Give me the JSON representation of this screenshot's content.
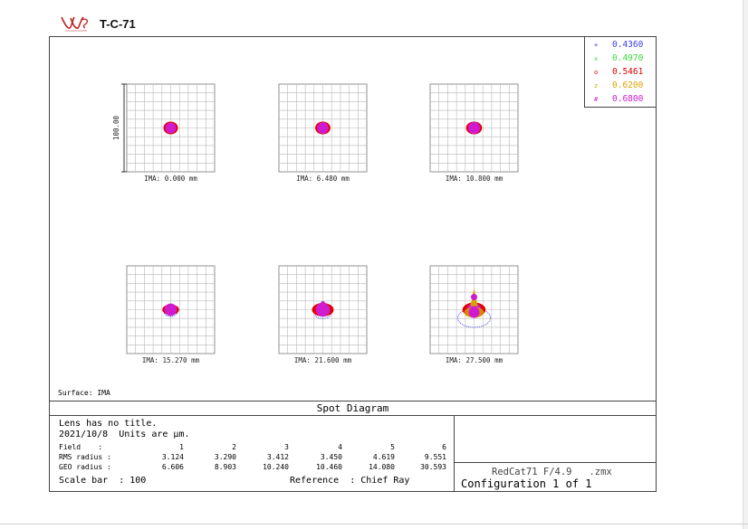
{
  "header": {
    "logo_icon": "william-optics-logo",
    "title": "T-C-71"
  },
  "legend": [
    {
      "wavelength": "0.4360",
      "color": "#3a3af0",
      "marker": "+"
    },
    {
      "wavelength": "0.4970",
      "color": "#3adb3a",
      "marker": "x"
    },
    {
      "wavelength": "0.5461",
      "color": "#e00000",
      "marker": "o"
    },
    {
      "wavelength": "0.6200",
      "color": "#d9a400",
      "marker": "z"
    },
    {
      "wavelength": "0.6800",
      "color": "#d01ad0",
      "marker": "#"
    }
  ],
  "scale_label": "100.00",
  "fields": [
    {
      "label": "IMA: 0.000 mm"
    },
    {
      "label": "IMA: 6.480 mm"
    },
    {
      "label": "IMA: 10.800 mm"
    },
    {
      "label": "IMA: 15.270 mm"
    },
    {
      "label": "IMA: 21.600 mm"
    },
    {
      "label": "IMA: 27.500 mm"
    }
  ],
  "surface": "Surface: IMA",
  "diagram_title": "Spot Diagram",
  "info": {
    "line1": "Lens has no title.",
    "line2": "2021/10/8  Units are µm.",
    "field_label": "Field    :",
    "field_numbers": [
      "1",
      "2",
      "3",
      "4",
      "5",
      "6"
    ],
    "rms_label": "RMS radius :",
    "rms_values": [
      "3.124",
      "3.290",
      "3.412",
      "3.450",
      "4.619",
      "9.551"
    ],
    "geo_label": "GEO radius :",
    "geo_values": [
      "6.606",
      "8.903",
      "10.240",
      "10.460",
      "14.080",
      "30.593"
    ],
    "scale_bar": "Scale bar  : 100",
    "reference": "Reference  : Chief Ray"
  },
  "config": {
    "lens": "RedCat71 F/4.9   .zmx",
    "configuration": "Configuration 1 of 1"
  }
}
